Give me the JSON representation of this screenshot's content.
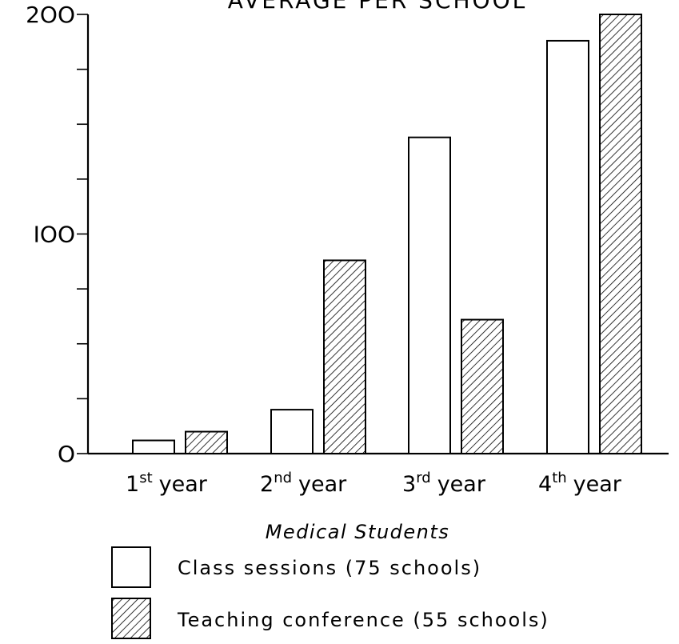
{
  "chart_data": {
    "type": "bar",
    "title": "AVERAGE PER SCHOOL",
    "xlabel": "Medical Students",
    "ylabel": "",
    "ylim": [
      0,
      200
    ],
    "y_ticks": [
      0,
      100,
      200
    ],
    "y_tick_labels": [
      "O",
      "IOO",
      "2OO"
    ],
    "categories": [
      {
        "base": "1",
        "sup": "st",
        "suffix": "year"
      },
      {
        "base": "2",
        "sup": "nd",
        "suffix": "year"
      },
      {
        "base": "3",
        "sup": "rd",
        "suffix": "year"
      },
      {
        "base": "4",
        "sup": "th",
        "suffix": "year"
      }
    ],
    "series": [
      {
        "name": "Class sessions (75 schools)",
        "values": [
          6,
          20,
          144,
          188
        ],
        "pattern": "none"
      },
      {
        "name": "Teaching conference (55 schools)",
        "values": [
          10,
          88,
          61,
          200
        ],
        "pattern": "hatched"
      }
    ],
    "grid": false,
    "legend_position": "bottom-left"
  }
}
